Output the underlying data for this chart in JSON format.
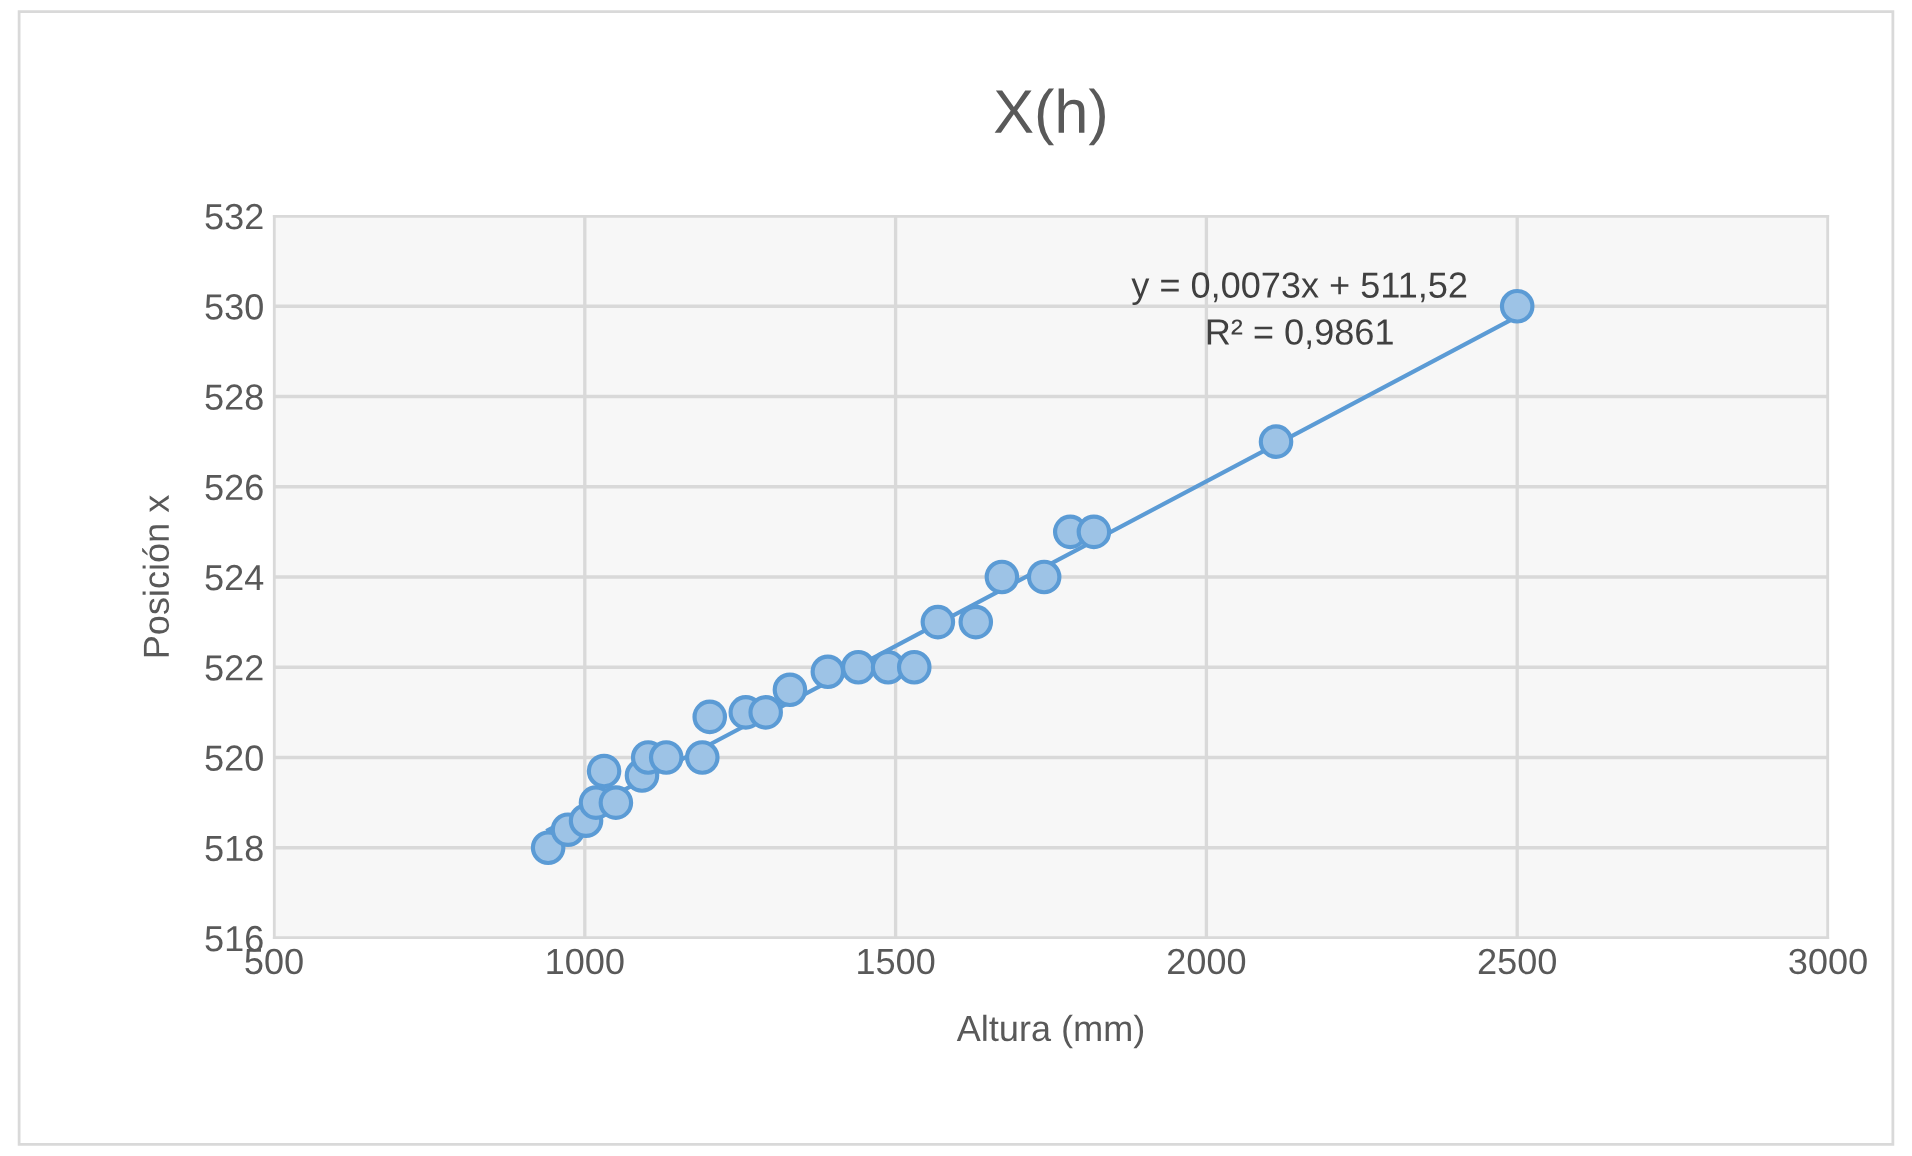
{
  "chart_data": {
    "type": "scatter",
    "title": "X(h)",
    "xlabel": "Altura (mm)",
    "ylabel": "Posición x",
    "xlim": [
      500,
      3000
    ],
    "xticks": [
      500,
      1000,
      1500,
      2000,
      2500,
      3000
    ],
    "ylim": [
      516,
      532
    ],
    "yticks": [
      516,
      518,
      520,
      522,
      524,
      526,
      528,
      530,
      532
    ],
    "grid": true,
    "legend": false,
    "annotations": [
      "y = 0,0073x + 511,52",
      "R² = 0,9861"
    ],
    "series": [
      {
        "marker": "circle",
        "color": "#9dc3e6",
        "x": [
          941,
          973,
          1002,
          1018,
          1031,
          1050,
          1092,
          1102,
          1131,
          1189,
          1201,
          1259,
          1291,
          1330,
          1391,
          1440,
          1488,
          1530,
          1568,
          1629,
          1671,
          1739,
          1781,
          1819,
          2112,
          2500
        ],
        "values": [
          518.0,
          518.4,
          518.6,
          519.0,
          519.7,
          519.0,
          519.6,
          520.0,
          520.0,
          520.0,
          520.9,
          521.0,
          521.0,
          521.5,
          521.9,
          522.0,
          522.0,
          522.0,
          523.0,
          523.0,
          524.0,
          524.0,
          525.0,
          525.0,
          527.0,
          530.0
        ]
      },
      {
        "type": "line",
        "color": "#5b9bd5",
        "line_style": "solid",
        "x": [
          941,
          2500
        ],
        "values": [
          518.39,
          529.77
        ]
      }
    ]
  }
}
